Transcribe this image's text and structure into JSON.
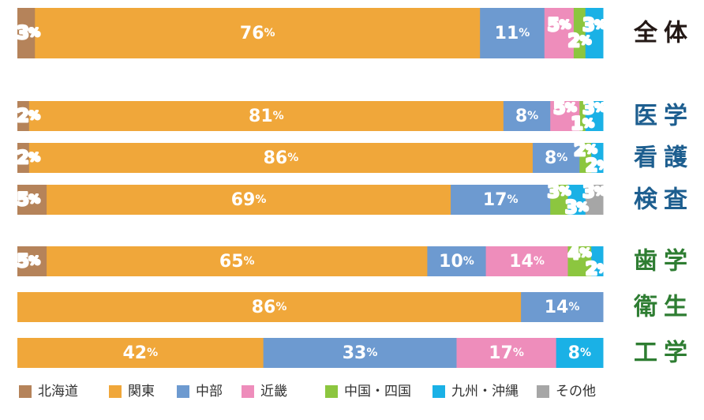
{
  "chart_data": {
    "type": "bar",
    "orientation": "horizontal",
    "stacked": true,
    "unit": "%",
    "categories": [
      "全体",
      "医学",
      "看護",
      "検査",
      "歯学",
      "衛生",
      "工学"
    ],
    "series": [
      {
        "name": "北海道",
        "color": "#b5835a",
        "values": [
          3,
          2,
          2,
          5,
          5,
          0,
          0
        ]
      },
      {
        "name": "関東",
        "color": "#f0a73a",
        "values": [
          76,
          81,
          86,
          69,
          65,
          86,
          42
        ]
      },
      {
        "name": "中部",
        "color": "#6d9ad0",
        "values": [
          11,
          8,
          8,
          17,
          10,
          14,
          33
        ]
      },
      {
        "name": "近畿",
        "color": "#ee8dbb",
        "values": [
          5,
          5,
          0,
          0,
          14,
          0,
          17
        ]
      },
      {
        "name": "中国・四国",
        "color": "#8cc63f",
        "values": [
          2,
          1,
          2,
          3,
          4,
          0,
          0
        ]
      },
      {
        "name": "九州・沖縄",
        "color": "#1ab1e6",
        "values": [
          3,
          3,
          2,
          3,
          2,
          0,
          8
        ]
      },
      {
        "name": "その他",
        "color": "#a6a6a6",
        "values": [
          0,
          0,
          0,
          3,
          0,
          0,
          0
        ]
      }
    ],
    "legend": {
      "position": "bottom"
    },
    "category_label_colors": {
      "全体": "#231815",
      "医学": "#1d5e8f",
      "看護": "#1d5e8f",
      "検査": "#1d5e8f",
      "歯学": "#2e7d32",
      "衛生": "#2e7d32",
      "工学": "#2e7d32"
    }
  }
}
